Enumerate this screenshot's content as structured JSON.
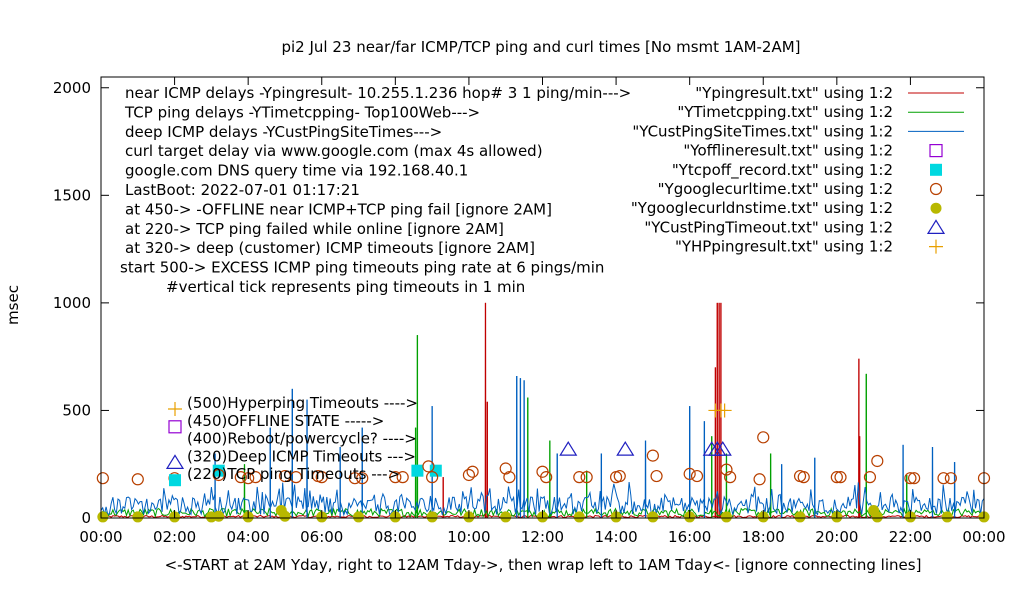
{
  "chart_data": {
    "type": "line",
    "title": "pi2 Jul 23  near/far ICMP/TCP ping and curl times [No msmt 1AM-2AM]",
    "xlabel": "<-START at 2AM Yday, right to 12AM Tday->, then wrap left to 1AM Tday<- [ignore connecting lines]",
    "ylabel": "msec",
    "xlim": [
      0,
      24
    ],
    "ylim": [
      0,
      2050
    ],
    "x_ticks": [
      {
        "v": 0,
        "label": "00:00"
      },
      {
        "v": 2,
        "label": "02:00"
      },
      {
        "v": 4,
        "label": "04:00"
      },
      {
        "v": 6,
        "label": "06:00"
      },
      {
        "v": 8,
        "label": "08:00"
      },
      {
        "v": 10,
        "label": "10:00"
      },
      {
        "v": 12,
        "label": "12:00"
      },
      {
        "v": 14,
        "label": "14:00"
      },
      {
        "v": 16,
        "label": "16:00"
      },
      {
        "v": 18,
        "label": "18:00"
      },
      {
        "v": 20,
        "label": "20:00"
      },
      {
        "v": 22,
        "label": "22:00"
      },
      {
        "v": 24,
        "label": "00:00"
      }
    ],
    "y_ticks": [
      {
        "v": 0,
        "label": "0"
      },
      {
        "v": 500,
        "label": "500"
      },
      {
        "v": 1000,
        "label": "1000"
      },
      {
        "v": 1500,
        "label": "1500"
      },
      {
        "v": 2000,
        "label": "2000"
      }
    ],
    "grid": false,
    "legend_position": "top-right",
    "notes": [
      "near ICMP delays -Ypingresult- 10.255.1.236 hop# 3 1 ping/min--->",
      "TCP ping delays -YTimetcpping- Top100Web--->",
      "deep ICMP delays -YCustPingSiteTimes--->",
      "curl target delay via www.google.com (max 4s allowed)",
      "google.com DNS query time via 192.168.40.1",
      "LastBoot: 2022-07-01 01:17:21",
      "at 450-> -OFFLINE near ICMP+TCP ping fail [ignore 2AM]",
      "at 220-> TCP ping failed while online [ignore 2AM]",
      "at 320-> deep (customer) ICMP timeouts [ignore 2AM]",
      "start 500-> EXCESS ICMP ping timeouts ping rate at 6 pings/min",
      "#vertical tick represents ping timeouts in 1 min"
    ],
    "inner_labels": [
      {
        "text": "(500)Hyperping Timeouts ---->",
        "marker": "plus"
      },
      {
        "text": "(450)OFFLINE STATE ----->",
        "marker": "square"
      },
      {
        "text": "(400)Reboot/powercycle? ---->",
        "marker": "none"
      },
      {
        "text": "(320)Deep ICMP Timeouts --->",
        "marker": "triangle"
      },
      {
        "text": "(220)TCP ping Timeouts --->",
        "marker": "filled-square"
      }
    ],
    "series": [
      {
        "name": "\"Ypingresult.txt\" using 1:2",
        "style": "line",
        "color": "#c00000",
        "baseline": 6,
        "spikes": [
          [
            10.45,
            1000
          ],
          [
            10.5,
            540
          ],
          [
            16.75,
            1000
          ],
          [
            16.8,
            1000
          ],
          [
            16.85,
            1000
          ],
          [
            16.7,
            700
          ],
          [
            20.6,
            740
          ],
          [
            20.62,
            380
          ],
          [
            9.3,
            190
          ]
        ]
      },
      {
        "name": "\"YTimetcpping.txt\" using 1:2",
        "style": "line",
        "color": "#00a000",
        "baseline": 22,
        "spikes": [
          [
            8.6,
            850
          ],
          [
            8.55,
            420
          ],
          [
            11.6,
            560
          ],
          [
            12.2,
            360
          ],
          [
            16.6,
            380
          ],
          [
            17.0,
            300
          ],
          [
            20.8,
            670
          ],
          [
            18.2,
            300
          ],
          [
            5.2,
            240
          ],
          [
            13.2,
            220
          ],
          [
            21.9,
            200
          ],
          [
            3.9,
            250
          ]
        ]
      },
      {
        "name": "\"YCustPingSiteTimes.txt\" using 1:2",
        "style": "line",
        "color": "#0060c0",
        "baseline": 50,
        "spikes": [
          [
            5.2,
            600
          ],
          [
            5.6,
            550
          ],
          [
            11.3,
            660
          ],
          [
            11.4,
            650
          ],
          [
            11.5,
            640
          ],
          [
            9.0,
            520
          ],
          [
            16.0,
            520
          ],
          [
            16.4,
            450
          ],
          [
            4.6,
            420
          ],
          [
            3.1,
            300
          ],
          [
            7.1,
            420
          ],
          [
            12.4,
            300
          ],
          [
            14.8,
            360
          ],
          [
            21.8,
            340
          ],
          [
            22.6,
            330
          ],
          [
            18.5,
            250
          ],
          [
            19.4,
            280
          ],
          [
            23.2,
            260
          ],
          [
            6.5,
            330
          ],
          [
            13.6,
            300
          ]
        ]
      },
      {
        "name": "\"Yofflineresult.txt\" using 1:2",
        "style": "open-square",
        "color": "#9400d3",
        "points": []
      },
      {
        "name": "\"Ytcpoff_record.txt\" using 1:2",
        "style": "filled-square",
        "color": "#00d8e0",
        "points": [
          [
            3.2,
            220
          ],
          [
            8.6,
            220
          ],
          [
            9.1,
            220
          ]
        ]
      },
      {
        "name": "\"Ygooglecurltime.txt\" using 1:2",
        "style": "open-circle",
        "color": "#b84000",
        "points": [
          [
            0.05,
            185
          ],
          [
            1.0,
            180
          ],
          [
            2.0,
            185
          ],
          [
            3.2,
            200
          ],
          [
            3.8,
            190
          ],
          [
            4.0,
            185
          ],
          [
            4.2,
            190
          ],
          [
            5.0,
            195
          ],
          [
            5.3,
            190
          ],
          [
            5.9,
            195
          ],
          [
            6.0,
            190
          ],
          [
            6.9,
            185
          ],
          [
            7.1,
            185
          ],
          [
            8.0,
            190
          ],
          [
            8.2,
            190
          ],
          [
            8.9,
            240
          ],
          [
            9.0,
            190
          ],
          [
            10.0,
            200
          ],
          [
            10.1,
            215
          ],
          [
            11.0,
            230
          ],
          [
            11.1,
            190
          ],
          [
            12.0,
            215
          ],
          [
            12.1,
            190
          ],
          [
            13.0,
            190
          ],
          [
            13.2,
            190
          ],
          [
            14.0,
            190
          ],
          [
            14.1,
            195
          ],
          [
            15.0,
            290
          ],
          [
            15.1,
            195
          ],
          [
            16.0,
            205
          ],
          [
            16.2,
            195
          ],
          [
            17.0,
            225
          ],
          [
            17.1,
            190
          ],
          [
            17.9,
            180
          ],
          [
            18.0,
            375
          ],
          [
            19.0,
            195
          ],
          [
            19.1,
            190
          ],
          [
            20.0,
            190
          ],
          [
            20.1,
            190
          ],
          [
            20.9,
            190
          ],
          [
            21.1,
            265
          ],
          [
            22.0,
            185
          ],
          [
            22.1,
            185
          ],
          [
            22.9,
            185
          ],
          [
            23.1,
            185
          ],
          [
            24.0,
            185
          ]
        ]
      },
      {
        "name": "\"Ygooglecurldnstime.txt\" using 1:2",
        "style": "filled-circle",
        "color": "#b8b800",
        "points": [
          [
            0.05,
            5
          ],
          [
            1.0,
            5
          ],
          [
            2.0,
            5
          ],
          [
            3.0,
            5
          ],
          [
            3.2,
            8
          ],
          [
            4.0,
            5
          ],
          [
            4.9,
            35
          ],
          [
            5.0,
            8
          ],
          [
            6.0,
            5
          ],
          [
            7.0,
            5
          ],
          [
            8.0,
            5
          ],
          [
            9.0,
            5
          ],
          [
            10.0,
            5
          ],
          [
            11.0,
            5
          ],
          [
            12.0,
            5
          ],
          [
            13.0,
            5
          ],
          [
            14.0,
            5
          ],
          [
            15.0,
            5
          ],
          [
            16.0,
            5
          ],
          [
            17.0,
            5
          ],
          [
            18.0,
            5
          ],
          [
            19.0,
            5
          ],
          [
            20.0,
            5
          ],
          [
            21.0,
            35
          ],
          [
            21.1,
            5
          ],
          [
            22.0,
            5
          ],
          [
            23.0,
            5
          ],
          [
            24.0,
            5
          ]
        ]
      },
      {
        "name": "\"YCustPingTimeout.txt\" using 1:2",
        "style": "open-triangle",
        "color": "#2020c0",
        "points": [
          [
            12.7,
            320
          ],
          [
            14.25,
            320
          ],
          [
            16.6,
            320
          ],
          [
            16.75,
            320
          ],
          [
            16.9,
            320
          ]
        ]
      },
      {
        "name": "\"YHPpingresult.txt\" using 1:2",
        "style": "plus",
        "color": "#e8a000",
        "points": [
          [
            16.7,
            500
          ],
          [
            16.85,
            500
          ],
          [
            16.95,
            500
          ]
        ]
      }
    ]
  }
}
